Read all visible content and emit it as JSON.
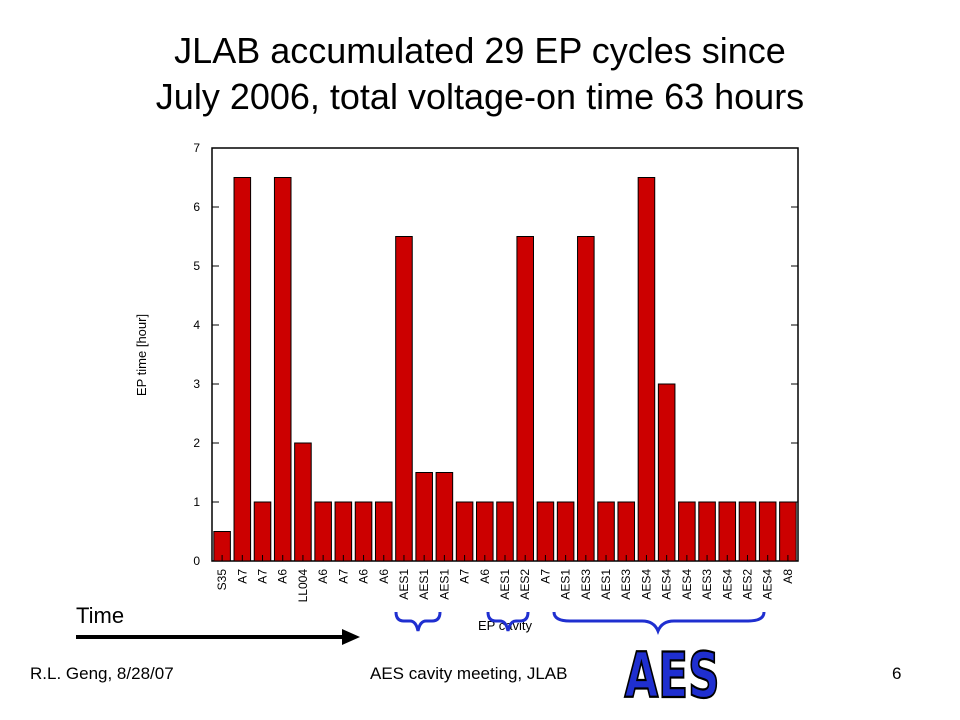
{
  "title": {
    "line1": "JLAB accumulated 29 EP cycles since",
    "line2": "July 2006, total voltage-on time 63 hours"
  },
  "chart_data": {
    "type": "bar",
    "ylabel": "EP time [hour]",
    "xlabel": "EP cavity",
    "ylim": [
      0,
      7
    ],
    "yticks": [
      0,
      1,
      2,
      3,
      4,
      5,
      6,
      7
    ],
    "grid": false,
    "bar_color": "#cc0000",
    "categories": [
      "S35",
      "A7",
      "A7",
      "A6",
      "LL004",
      "A6",
      "A7",
      "A6",
      "A6",
      "AES1",
      "AES1",
      "AES1",
      "A7",
      "A6",
      "AES1",
      "AES2",
      "A7",
      "AES1",
      "AES3",
      "AES1",
      "AES3",
      "AES4",
      "AES4",
      "AES4",
      "AES3",
      "AES4",
      "AES2",
      "AES4",
      "A8"
    ],
    "values": [
      0.5,
      6.5,
      1,
      6.5,
      2,
      1,
      1,
      1,
      1,
      5.5,
      1.5,
      1.5,
      1,
      1,
      1,
      5.5,
      1,
      1,
      5.5,
      1,
      1,
      6.5,
      3,
      1,
      1,
      1,
      1,
      1,
      1
    ]
  },
  "annotations": {
    "time_label": "Time",
    "aes_label": "AES",
    "brace_color": "#1f2fd0",
    "aes_color": "#1f2fd0"
  },
  "footer": {
    "author": "R.L. Geng, 8/28/07",
    "meeting": "AES cavity meeting, JLAB",
    "page": "6"
  }
}
